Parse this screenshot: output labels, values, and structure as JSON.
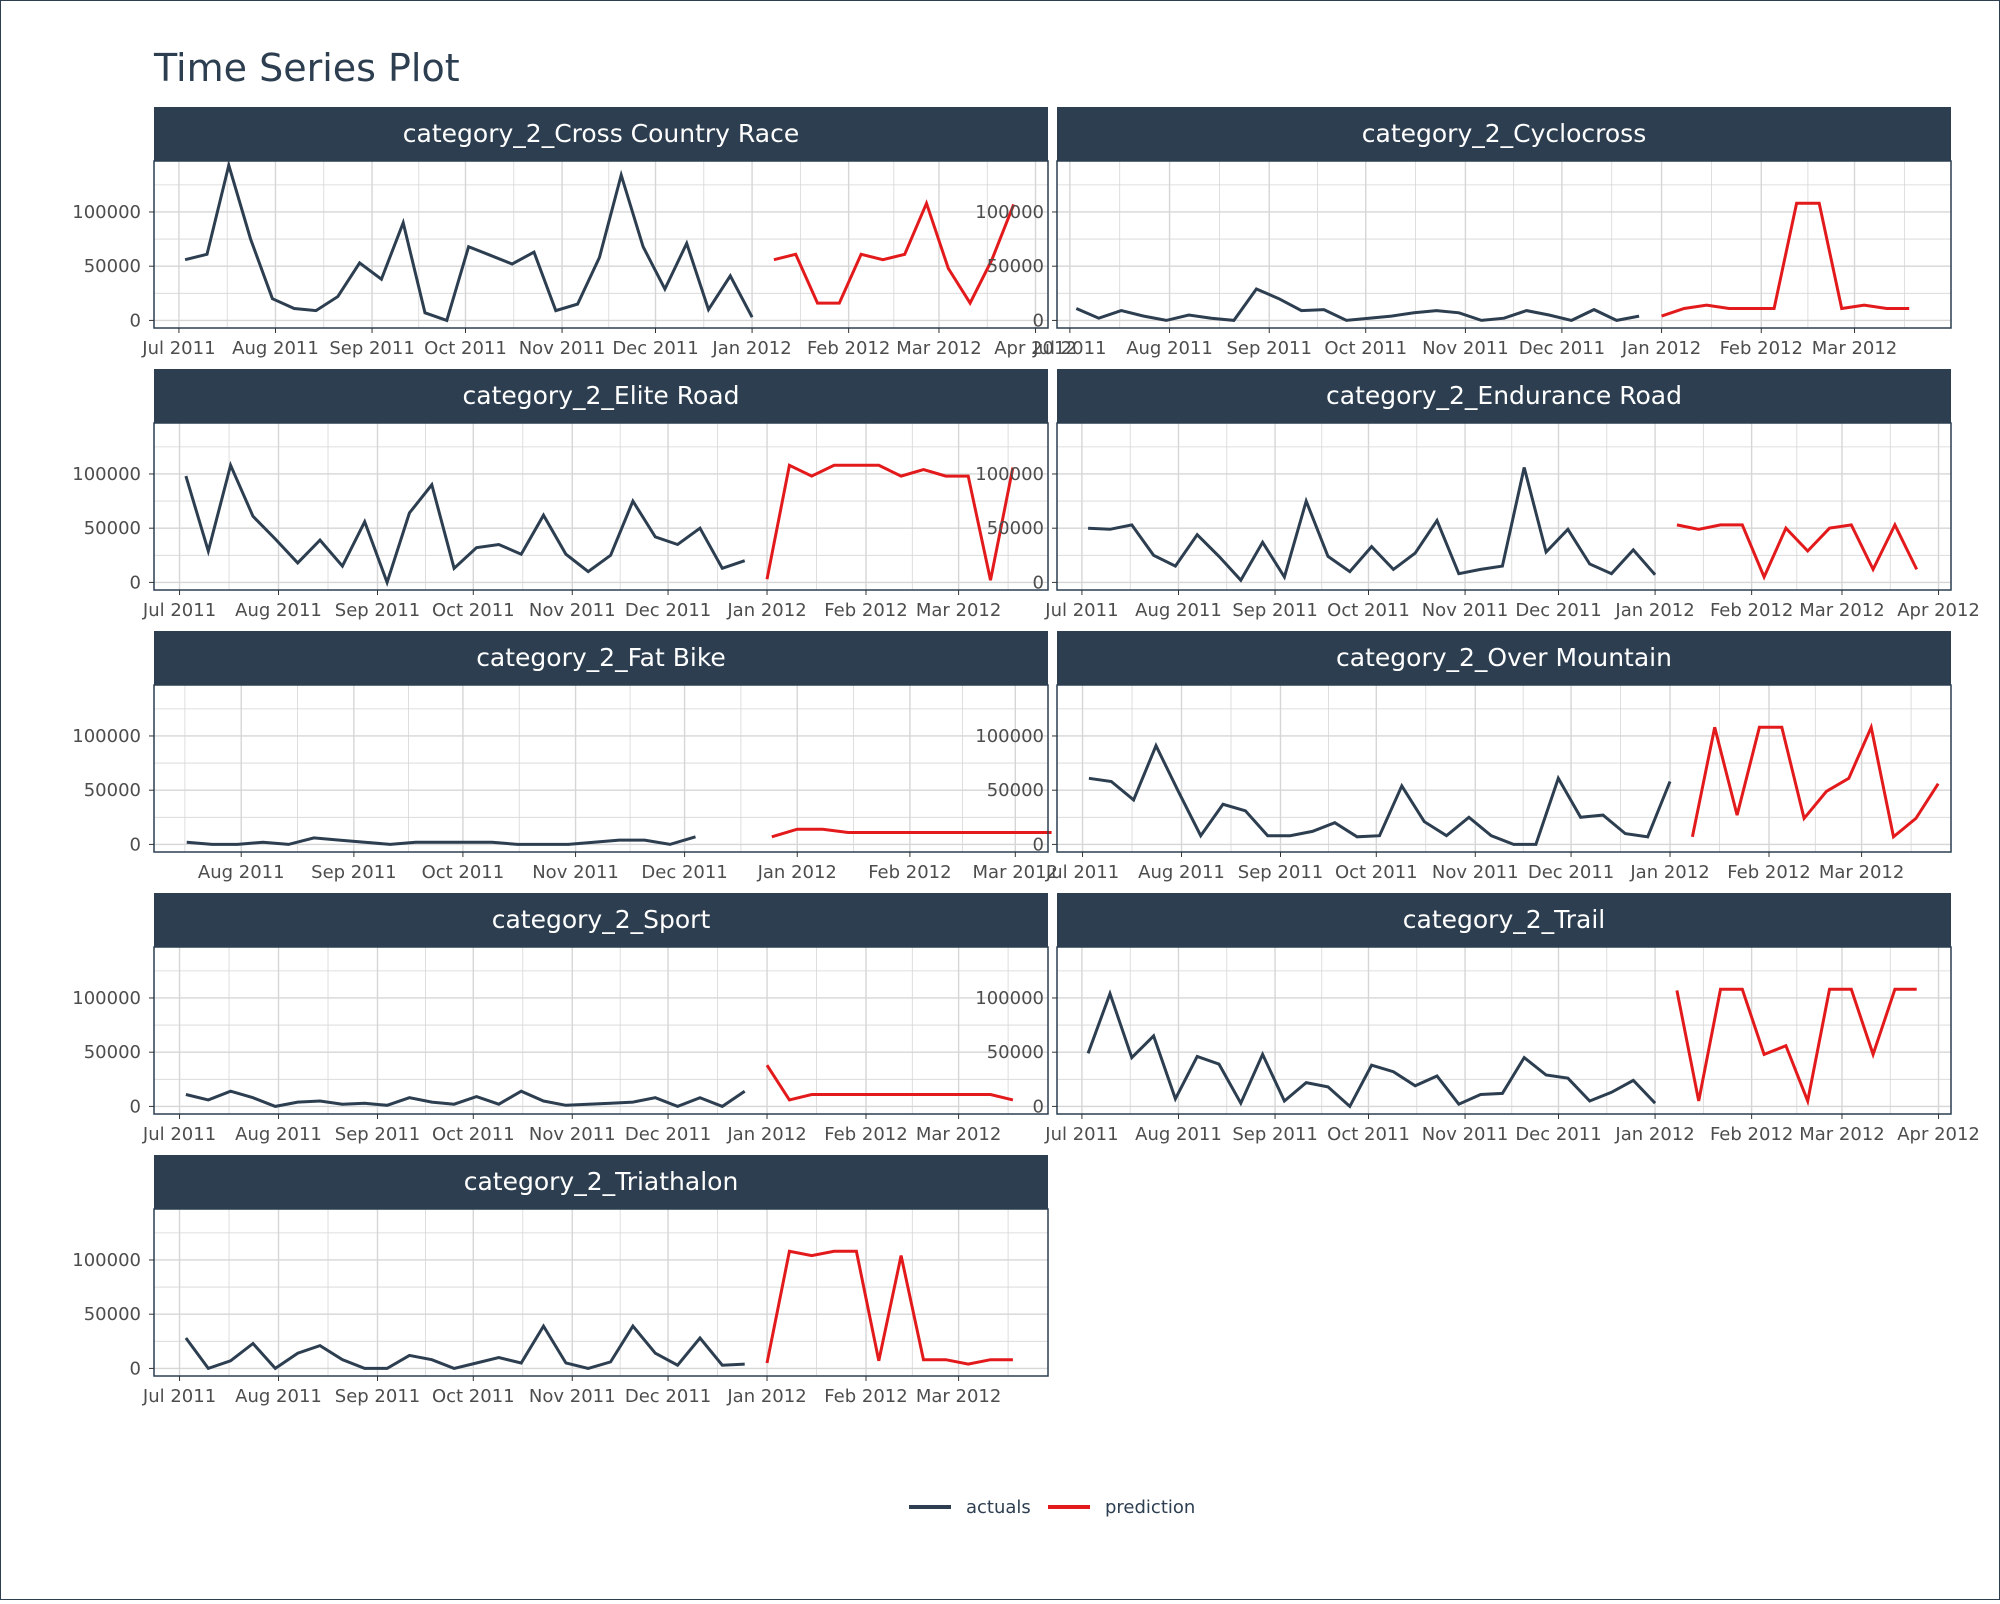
{
  "title": "Time Series Plot",
  "colors": {
    "actuals": "#2c3e50",
    "prediction": "#e31a1c",
    "strip": "#2c3e50",
    "grid": "#d6d6d6",
    "panel_border": "#2c3e50"
  },
  "legend": {
    "placement": "bottom",
    "items": [
      {
        "label": "actuals",
        "color": "#2c3e50"
      },
      {
        "label": "prediction",
        "color": "#e31a1c"
      }
    ]
  },
  "chart_data": [
    {
      "type": "line",
      "title": "category_2_Cross Country Race",
      "x_type": "date",
      "xlim": [
        "2011-06-23",
        "2012-04-05"
      ],
      "ylim": [
        -7000,
        147000
      ],
      "yticks": [
        0,
        50000,
        100000
      ],
      "xtick_dates": [
        "2011-07-01",
        "2011-08-01",
        "2011-09-01",
        "2011-10-01",
        "2011-11-01",
        "2011-12-01",
        "2012-01-01",
        "2012-02-01",
        "2012-03-01",
        "2012-04-01"
      ],
      "xtick_labels": [
        "Jul 2011",
        "Aug 2011",
        "Sep 2011",
        "Oct 2011",
        "Nov 2011",
        "Dec 2011",
        "Jan 2012",
        "Feb 2012",
        "Mar 2012",
        "Apr 2012"
      ],
      "series": [
        {
          "name": "actuals",
          "start": "2011-07-03",
          "step_days": 7,
          "values": [
            56000,
            61000,
            143000,
            75000,
            20000,
            11000,
            9000,
            22000,
            53000,
            38000,
            90000,
            7000,
            0,
            68000,
            60000,
            52000,
            63000,
            9000,
            15000,
            58000,
            134000,
            68000,
            29000,
            71000,
            10000,
            41000,
            3000
          ]
        },
        {
          "name": "prediction",
          "start": "2012-01-08",
          "step_days": 7,
          "values": [
            56000,
            61000,
            16000,
            16000,
            61000,
            56000,
            61000,
            108000,
            48000,
            16000,
            56000,
            107000
          ]
        }
      ]
    },
    {
      "type": "line",
      "title": "category_2_Cyclocross",
      "x_type": "date",
      "xlim": [
        "2011-06-27",
        "2012-03-31"
      ],
      "ylim": [
        -7000,
        147000
      ],
      "yticks": [
        0,
        50000,
        100000
      ],
      "xtick_dates": [
        "2011-07-01",
        "2011-08-01",
        "2011-09-01",
        "2011-10-01",
        "2011-11-01",
        "2011-12-01",
        "2012-01-01",
        "2012-02-01",
        "2012-03-01"
      ],
      "xtick_labels": [
        "Jul 2011",
        "Aug 2011",
        "Sep 2011",
        "Oct 2011",
        "Nov 2011",
        "Dec 2011",
        "Jan 2012",
        "Feb 2012",
        "Mar 2012"
      ],
      "series": [
        {
          "name": "actuals",
          "start": "2011-07-03",
          "step_days": 7,
          "values": [
            11000,
            2000,
            9000,
            4000,
            0,
            5000,
            2000,
            0,
            29000,
            20000,
            9000,
            10000,
            0,
            2000,
            4000,
            7000,
            9000,
            7000,
            0,
            2000,
            9000,
            5000,
            0,
            10000,
            0,
            4000
          ]
        },
        {
          "name": "prediction",
          "start": "2012-01-01",
          "step_days": 7,
          "values": [
            4000,
            11000,
            14000,
            11000,
            11000,
            11000,
            108000,
            108000,
            11000,
            14000,
            11000,
            11000
          ]
        }
      ]
    },
    {
      "type": "line",
      "title": "category_2_Elite Road",
      "x_type": "date",
      "xlim": [
        "2011-06-23",
        "2012-03-29"
      ],
      "ylim": [
        -7000,
        147000
      ],
      "yticks": [
        0,
        50000,
        100000
      ],
      "xtick_dates": [
        "2011-07-01",
        "2011-08-01",
        "2011-09-01",
        "2011-10-01",
        "2011-11-01",
        "2011-12-01",
        "2012-01-01",
        "2012-02-01",
        "2012-03-01"
      ],
      "xtick_labels": [
        "Jul 2011",
        "Aug 2011",
        "Sep 2011",
        "Oct 2011",
        "Nov 2011",
        "Dec 2011",
        "Jan 2012",
        "Feb 2012",
        "Mar 2012"
      ],
      "series": [
        {
          "name": "actuals",
          "start": "2011-07-03",
          "step_days": 7,
          "values": [
            98000,
            29000,
            108000,
            61000,
            40000,
            18000,
            39000,
            15000,
            56000,
            0,
            64000,
            90000,
            13000,
            32000,
            35000,
            26000,
            62000,
            26000,
            10000,
            25000,
            75000,
            42000,
            35000,
            50000,
            13000,
            20000
          ]
        },
        {
          "name": "prediction",
          "start": "2012-01-01",
          "step_days": 7,
          "values": [
            3000,
            108000,
            98000,
            108000,
            108000,
            108000,
            98000,
            104000,
            98000,
            98000,
            2000,
            106000
          ]
        }
      ]
    },
    {
      "type": "line",
      "title": "category_2_Endurance Road",
      "x_type": "date",
      "xlim": [
        "2011-06-23",
        "2012-04-05"
      ],
      "ylim": [
        -7000,
        147000
      ],
      "yticks": [
        0,
        50000,
        100000
      ],
      "xtick_dates": [
        "2011-07-01",
        "2011-08-01",
        "2011-09-01",
        "2011-10-01",
        "2011-11-01",
        "2011-12-01",
        "2012-01-01",
        "2012-02-01",
        "2012-03-01",
        "2012-04-01"
      ],
      "xtick_labels": [
        "Jul 2011",
        "Aug 2011",
        "Sep 2011",
        "Oct 2011",
        "Nov 2011",
        "Dec 2011",
        "Jan 2012",
        "Feb 2012",
        "Mar 2012",
        "Apr 2012"
      ],
      "series": [
        {
          "name": "actuals",
          "start": "2011-07-03",
          "step_days": 7,
          "values": [
            50000,
            49000,
            53000,
            25000,
            15000,
            44000,
            24000,
            2000,
            37000,
            5000,
            75000,
            24000,
            10000,
            33000,
            12000,
            27000,
            57000,
            8000,
            12000,
            15000,
            106000,
            28000,
            49000,
            17000,
            8000,
            30000,
            7000
          ]
        },
        {
          "name": "prediction",
          "start": "2012-01-08",
          "step_days": 7,
          "values": [
            53000,
            49000,
            53000,
            53000,
            5000,
            50000,
            29000,
            50000,
            53000,
            12000,
            53000,
            12000
          ]
        }
      ]
    },
    {
      "type": "line",
      "title": "category_2_Fat Bike",
      "x_type": "date",
      "xlim": [
        "2011-07-08",
        "2012-03-10"
      ],
      "ylim": [
        -7000,
        147000
      ],
      "yticks": [
        0,
        50000,
        100000
      ],
      "xtick_dates": [
        "2011-08-01",
        "2011-09-01",
        "2011-10-01",
        "2011-11-01",
        "2011-12-01",
        "2012-01-01",
        "2012-02-01",
        "2012-03-01"
      ],
      "xtick_labels": [
        "Aug 2011",
        "Sep 2011",
        "Oct 2011",
        "Nov 2011",
        "Dec 2011",
        "Jan 2012",
        "Feb 2012",
        "Mar 2012"
      ],
      "series": [
        {
          "name": "actuals",
          "start": "2011-07-17",
          "step_days": 7,
          "values": [
            2000,
            0,
            0,
            2000,
            0,
            6000,
            4000,
            2000,
            0,
            2000,
            2000,
            2000,
            2000,
            0,
            0,
            0,
            2000,
            4000,
            4000,
            0,
            7000
          ]
        },
        {
          "name": "prediction",
          "start": "2011-12-25",
          "step_days": 7,
          "values": [
            7000,
            14000,
            14000,
            11000,
            11000,
            11000,
            11000,
            11000,
            11000,
            11000,
            11000,
            11000
          ]
        }
      ]
    },
    {
      "type": "line",
      "title": "category_2_Over Mountain",
      "x_type": "date",
      "xlim": [
        "2011-06-23",
        "2012-03-29"
      ],
      "ylim": [
        -7000,
        147000
      ],
      "yticks": [
        0,
        50000,
        100000
      ],
      "xtick_dates": [
        "2011-07-01",
        "2011-08-01",
        "2011-09-01",
        "2011-10-01",
        "2011-11-01",
        "2011-12-01",
        "2012-01-01",
        "2012-02-01",
        "2012-03-01"
      ],
      "xtick_labels": [
        "Jul 2011",
        "Aug 2011",
        "Sep 2011",
        "Oct 2011",
        "Nov 2011",
        "Dec 2011",
        "Jan 2012",
        "Feb 2012",
        "Mar 2012"
      ],
      "series": [
        {
          "name": "actuals",
          "start": "2011-07-03",
          "step_days": 7,
          "values": [
            61000,
            58000,
            41000,
            91000,
            49000,
            8000,
            37000,
            31000,
            8000,
            8000,
            12000,
            20000,
            7000,
            8000,
            54000,
            21000,
            8000,
            25000,
            8000,
            0,
            0,
            61000,
            25000,
            27000,
            10000,
            7000,
            58000
          ]
        },
        {
          "name": "prediction",
          "start": "2012-01-08",
          "step_days": 7,
          "values": [
            7000,
            108000,
            27000,
            108000,
            108000,
            24000,
            49000,
            61000,
            108000,
            7000,
            24000,
            56000
          ]
        }
      ]
    },
    {
      "type": "line",
      "title": "category_2_Sport",
      "x_type": "date",
      "xlim": [
        "2011-06-23",
        "2012-03-29"
      ],
      "ylim": [
        -7000,
        147000
      ],
      "yticks": [
        0,
        50000,
        100000
      ],
      "xtick_dates": [
        "2011-07-01",
        "2011-08-01",
        "2011-09-01",
        "2011-10-01",
        "2011-11-01",
        "2011-12-01",
        "2012-01-01",
        "2012-02-01",
        "2012-03-01"
      ],
      "xtick_labels": [
        "Jul 2011",
        "Aug 2011",
        "Sep 2011",
        "Oct 2011",
        "Nov 2011",
        "Dec 2011",
        "Jan 2012",
        "Feb 2012",
        "Mar 2012"
      ],
      "series": [
        {
          "name": "actuals",
          "start": "2011-07-03",
          "step_days": 7,
          "values": [
            11000,
            6000,
            14000,
            8000,
            0,
            4000,
            5000,
            2000,
            3000,
            1000,
            8000,
            4000,
            2000,
            9000,
            2000,
            14000,
            5000,
            1000,
            2000,
            3000,
            4000,
            8000,
            0,
            8000,
            0,
            14000
          ]
        },
        {
          "name": "prediction",
          "start": "2012-01-01",
          "step_days": 7,
          "values": [
            38000,
            6000,
            11000,
            11000,
            11000,
            11000,
            11000,
            11000,
            11000,
            11000,
            11000,
            6000
          ]
        }
      ]
    },
    {
      "type": "line",
      "title": "category_2_Trail",
      "x_type": "date",
      "xlim": [
        "2011-06-23",
        "2012-04-05"
      ],
      "ylim": [
        -7000,
        147000
      ],
      "yticks": [
        0,
        50000,
        100000
      ],
      "xtick_dates": [
        "2011-07-01",
        "2011-08-01",
        "2011-09-01",
        "2011-10-01",
        "2011-11-01",
        "2011-12-01",
        "2012-01-01",
        "2012-02-01",
        "2012-03-01",
        "2012-04-01"
      ],
      "xtick_labels": [
        "Jul 2011",
        "Aug 2011",
        "Sep 2011",
        "Oct 2011",
        "Nov 2011",
        "Dec 2011",
        "Jan 2012",
        "Feb 2012",
        "Mar 2012",
        "Apr 2012"
      ],
      "series": [
        {
          "name": "actuals",
          "start": "2011-07-03",
          "step_days": 7,
          "values": [
            49000,
            104000,
            45000,
            65000,
            7000,
            46000,
            39000,
            3000,
            48000,
            5000,
            22000,
            18000,
            0,
            38000,
            32000,
            19000,
            28000,
            2000,
            11000,
            12000,
            45000,
            29000,
            26000,
            5000,
            13000,
            24000,
            3000
          ]
        },
        {
          "name": "prediction",
          "start": "2012-01-08",
          "step_days": 7,
          "values": [
            107000,
            5000,
            108000,
            108000,
            48000,
            56000,
            5000,
            108000,
            108000,
            48000,
            108000,
            108000
          ]
        }
      ]
    },
    {
      "type": "line",
      "title": "category_2_Triathalon",
      "x_type": "date",
      "xlim": [
        "2011-06-23",
        "2012-03-29"
      ],
      "ylim": [
        -7000,
        147000
      ],
      "yticks": [
        0,
        50000,
        100000
      ],
      "xtick_dates": [
        "2011-07-01",
        "2011-08-01",
        "2011-09-01",
        "2011-10-01",
        "2011-11-01",
        "2011-12-01",
        "2012-01-01",
        "2012-02-01",
        "2012-03-01"
      ],
      "xtick_labels": [
        "Jul 2011",
        "Aug 2011",
        "Sep 2011",
        "Oct 2011",
        "Nov 2011",
        "Dec 2011",
        "Jan 2012",
        "Feb 2012",
        "Mar 2012"
      ],
      "series": [
        {
          "name": "actuals",
          "start": "2011-07-03",
          "step_days": 7,
          "values": [
            28000,
            0,
            7000,
            23000,
            0,
            14000,
            21000,
            8000,
            0,
            0,
            12000,
            8000,
            0,
            5000,
            10000,
            5000,
            39000,
            5000,
            0,
            6000,
            39000,
            14000,
            3000,
            28000,
            3000,
            4000
          ]
        },
        {
          "name": "prediction",
          "start": "2012-01-01",
          "step_days": 7,
          "values": [
            5000,
            108000,
            104000,
            108000,
            108000,
            7000,
            104000,
            8000,
            8000,
            4000,
            8000,
            8000
          ]
        }
      ]
    }
  ]
}
